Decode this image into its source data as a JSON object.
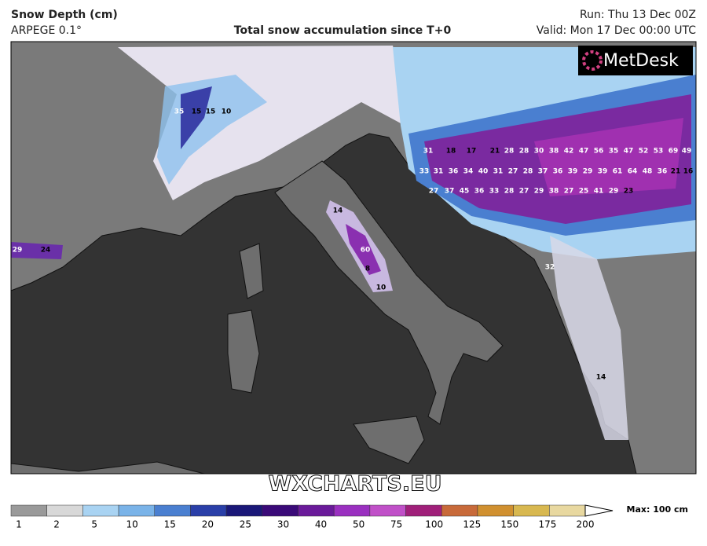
{
  "header": {
    "title": "Snow Depth (cm)",
    "model": "ARPEGE 0.1°",
    "subtitle": "Total snow accumulation since T+0",
    "run": "Run: Thu 13 Dec 00Z",
    "valid": "Valid: Mon 17 Dec 00:00 UTC"
  },
  "logo": "MetDesk",
  "watermark": "WXCHARTS.EU",
  "legend": {
    "ticks": [
      1,
      2,
      5,
      10,
      15,
      20,
      25,
      30,
      40,
      50,
      75,
      100,
      125,
      150,
      175,
      200
    ],
    "colors": [
      "#9a9a9a",
      "#d8d8d8",
      "#a9d3f2",
      "#7ab3e8",
      "#4a7fd0",
      "#2a3fa8",
      "#1a1878",
      "#3a0a78",
      "#6a1a9a",
      "#9a30c0",
      "#c050c8",
      "#a0207a",
      "#c86a3a",
      "#d09030",
      "#d8b850",
      "#e8d8a0"
    ],
    "max_label": "Max: 100 cm"
  },
  "snow_labels": [
    31,
    18,
    17,
    21,
    28,
    28,
    30,
    38,
    42,
    47,
    56,
    35,
    47,
    52,
    53,
    69,
    49,
    33,
    31,
    36,
    34,
    40,
    31,
    27,
    28,
    37,
    36,
    39,
    29,
    39,
    61,
    64,
    48,
    36,
    21,
    16,
    27,
    37,
    45,
    36,
    33,
    28,
    27,
    29,
    38,
    27,
    25,
    41,
    29,
    23,
    14,
    60,
    8,
    10,
    35,
    15,
    15,
    10,
    29,
    24,
    32,
    14
  ]
}
